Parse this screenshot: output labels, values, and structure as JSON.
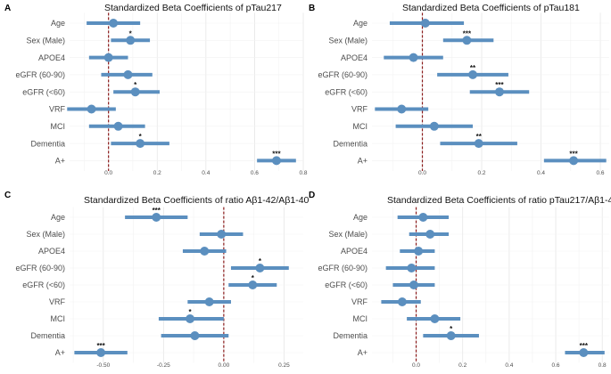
{
  "chart_data": [
    {
      "type": "forest",
      "panel": "A",
      "title": "Standardized Beta Coefficients of pTau217",
      "categories": [
        "Age",
        "Sex (Male)",
        "APOE4",
        "eGFR (60-90)",
        "eGFR (<60)",
        "VRF",
        "MCI",
        "Dementia",
        "A+"
      ],
      "estimates": [
        0.02,
        0.09,
        0.0,
        0.08,
        0.11,
        -0.07,
        0.04,
        0.13,
        0.69
      ],
      "ci_low": [
        -0.09,
        0.01,
        -0.08,
        -0.03,
        0.02,
        -0.17,
        -0.08,
        0.01,
        0.61
      ],
      "ci_high": [
        0.13,
        0.17,
        0.08,
        0.18,
        0.21,
        0.03,
        0.15,
        0.25,
        0.77
      ],
      "significance": [
        "",
        "*",
        "",
        "",
        "*",
        "",
        "",
        "*",
        "***"
      ],
      "xlim": [
        -0.16,
        0.8
      ],
      "xticks": [
        0.0,
        0.2,
        0.4,
        0.6,
        0.8
      ],
      "xtick_labels": [
        "0.0",
        "0.2",
        "0.4",
        "0.6",
        "0.8"
      ],
      "reference": 0
    },
    {
      "type": "forest",
      "panel": "B",
      "title": "Standardized Beta Coefficients of pTau181",
      "categories": [
        "Age",
        "Sex (Male)",
        "APOE4",
        "eGFR (60-90)",
        "eGFR (<60)",
        "VRF",
        "MCI",
        "Dementia",
        "A+"
      ],
      "estimates": [
        0.01,
        0.15,
        -0.03,
        0.17,
        0.26,
        -0.07,
        0.04,
        0.19,
        0.51
      ],
      "ci_low": [
        -0.11,
        0.07,
        -0.13,
        0.05,
        0.16,
        -0.16,
        -0.09,
        0.06,
        0.41
      ],
      "ci_high": [
        0.14,
        0.24,
        0.07,
        0.29,
        0.36,
        0.02,
        0.17,
        0.32,
        0.62
      ],
      "significance": [
        "",
        "***",
        "",
        "**",
        "***",
        "",
        "",
        "**",
        "***"
      ],
      "xlim": [
        -0.17,
        0.63
      ],
      "xticks": [
        0.0,
        0.2,
        0.4,
        0.6
      ],
      "xtick_labels": [
        "0.0",
        "0.2",
        "0.4",
        "0.6"
      ],
      "reference": 0
    },
    {
      "type": "forest",
      "panel": "C",
      "title": "Standardized Beta Coefficients of ratio Aβ1-42/Aβ1-40",
      "categories": [
        "Age",
        "Sex (Male)",
        "APOE4",
        "eGFR (60-90)",
        "eGFR (<60)",
        "VRF",
        "MCI",
        "Dementia",
        "A+"
      ],
      "estimates": [
        -0.28,
        -0.01,
        -0.08,
        0.15,
        0.12,
        -0.06,
        -0.14,
        -0.12,
        -0.51
      ],
      "ci_low": [
        -0.41,
        -0.1,
        -0.17,
        0.03,
        0.02,
        -0.15,
        -0.27,
        -0.26,
        -0.62
      ],
      "ci_high": [
        -0.15,
        0.08,
        0.01,
        0.27,
        0.22,
        0.03,
        0.0,
        0.02,
        -0.4
      ],
      "significance": [
        "***",
        "",
        "",
        "*",
        "*",
        "",
        "*",
        "",
        "***"
      ],
      "xlim": [
        -0.64,
        0.33
      ],
      "xticks": [
        -0.5,
        -0.25,
        0.0,
        0.25
      ],
      "xtick_labels": [
        "-0.50",
        "-0.25",
        "0.00",
        "0.25"
      ],
      "reference": 0
    },
    {
      "type": "forest",
      "panel": "D",
      "title": "Standardized Beta Coefficients of ratio pTau217/Aβ1-42",
      "categories": [
        "Age",
        "Sex (Male)",
        "APOE4",
        "eGFR (60-90)",
        "eGFR (<60)",
        "VRF",
        "MCI",
        "Dementia",
        "A+"
      ],
      "estimates": [
        0.03,
        0.06,
        0.01,
        -0.02,
        -0.01,
        -0.06,
        0.08,
        0.15,
        0.72
      ],
      "ci_low": [
        -0.08,
        -0.03,
        -0.07,
        -0.13,
        -0.1,
        -0.15,
        -0.04,
        0.03,
        0.64
      ],
      "ci_high": [
        0.14,
        0.14,
        0.08,
        0.08,
        0.08,
        0.02,
        0.19,
        0.27,
        0.81
      ],
      "significance": [
        "",
        "",
        "",
        "",
        "",
        "",
        "",
        "*",
        "***"
      ],
      "xlim": [
        -0.19,
        0.83
      ],
      "xticks": [
        0.0,
        0.2,
        0.4,
        0.6,
        0.8
      ],
      "xtick_labels": [
        "0.0",
        "0.2",
        "0.4",
        "0.6",
        "0.8"
      ],
      "reference": 0
    }
  ]
}
